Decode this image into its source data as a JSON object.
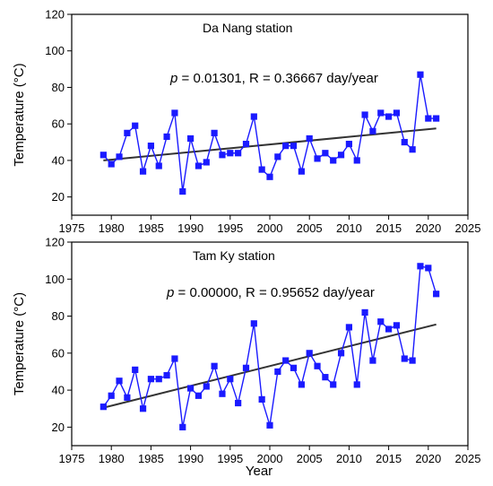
{
  "chart_data": [
    {
      "type": "line",
      "title": "Da Nang station",
      "annotation": {
        "p_label": "p",
        "text": " = 0.01301, R = 0.36667 day/year"
      },
      "xlabel": "",
      "ylabel": "Temperature (°C)",
      "xlim": [
        1975,
        2025
      ],
      "ylim": [
        10,
        120
      ],
      "xticks": [
        1975,
        1980,
        1985,
        1990,
        1995,
        2000,
        2005,
        2010,
        2015,
        2020,
        2025
      ],
      "yticks": [
        20,
        40,
        60,
        80,
        100,
        120
      ],
      "grid": false,
      "series": [
        {
          "color": "#1a1aff",
          "marker": "square",
          "x": [
            1979,
            1980,
            1981,
            1982,
            1983,
            1984,
            1985,
            1986,
            1987,
            1988,
            1989,
            1990,
            1991,
            1992,
            1993,
            1994,
            1995,
            1996,
            1997,
            1998,
            1999,
            2000,
            2001,
            2002,
            2003,
            2004,
            2005,
            2006,
            2007,
            2008,
            2009,
            2010,
            2011,
            2012,
            2013,
            2014,
            2015,
            2016,
            2017,
            2018,
            2019,
            2020,
            2021
          ],
          "y": [
            43,
            38,
            42,
            55,
            59,
            34,
            48,
            37,
            53,
            66,
            23,
            52,
            37,
            39,
            55,
            43,
            44,
            44,
            49,
            64,
            35,
            31,
            42,
            48,
            48,
            34,
            52,
            41,
            44,
            40,
            43,
            49,
            40,
            65,
            56,
            66,
            64,
            66,
            50,
            46,
            87,
            63,
            63
          ]
        }
      ],
      "trendline": {
        "color": "#333333",
        "x": [
          1979,
          2021
        ],
        "y": [
          40,
          57.5
        ]
      }
    },
    {
      "type": "line",
      "title": "Tam Ky station",
      "annotation": {
        "p_label": "p",
        "text": " = 0.00000, R = 0.95652 day/year"
      },
      "xlabel": "Year",
      "ylabel": "Temperature (°C)",
      "xlim": [
        1975,
        2025
      ],
      "ylim": [
        10,
        120
      ],
      "xticks": [
        1975,
        1980,
        1985,
        1990,
        1995,
        2000,
        2005,
        2010,
        2015,
        2020,
        2025
      ],
      "yticks": [
        20,
        40,
        60,
        80,
        100,
        120
      ],
      "grid": false,
      "series": [
        {
          "color": "#1a1aff",
          "marker": "square",
          "x": [
            1979,
            1980,
            1981,
            1982,
            1983,
            1984,
            1985,
            1986,
            1987,
            1988,
            1989,
            1990,
            1991,
            1992,
            1993,
            1994,
            1995,
            1996,
            1997,
            1998,
            1999,
            2000,
            2001,
            2002,
            2003,
            2004,
            2005,
            2006,
            2007,
            2008,
            2009,
            2010,
            2011,
            2012,
            2013,
            2014,
            2015,
            2016,
            2017,
            2018,
            2019,
            2020,
            2021
          ],
          "y": [
            31,
            37,
            45,
            36,
            51,
            30,
            46,
            46,
            48,
            57,
            20,
            41,
            37,
            42,
            53,
            38,
            46,
            33,
            52,
            76,
            35,
            21,
            50,
            56,
            52,
            43,
            60,
            53,
            47,
            43,
            60,
            74,
            43,
            82,
            56,
            77,
            73,
            75,
            57,
            56,
            107,
            106,
            92
          ]
        }
      ],
      "trendline": {
        "color": "#333333",
        "x": [
          1979,
          2021
        ],
        "y": [
          30.5,
          75.5
        ]
      }
    }
  ]
}
